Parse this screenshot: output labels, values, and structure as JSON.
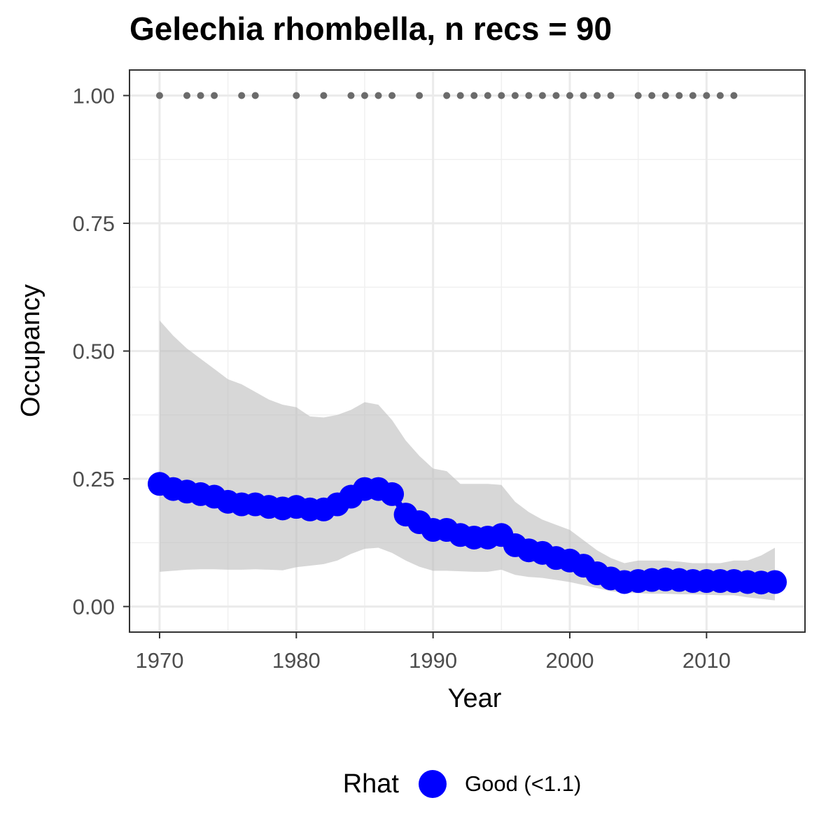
{
  "chart_data": {
    "type": "line",
    "title": "Gelechia rhombella, n recs = 90",
    "xlabel": "Year",
    "ylabel": "Occupancy",
    "xlim": [
      1967.8,
      2017.2
    ],
    "ylim": [
      -0.05,
      1.05
    ],
    "x_ticks": [
      1970,
      1980,
      1990,
      2000,
      2010
    ],
    "x_tick_labels": [
      "1970",
      "1980",
      "1990",
      "2000",
      "2010"
    ],
    "y_ticks": [
      0,
      0.25,
      0.5,
      0.75,
      1.0
    ],
    "y_tick_labels": [
      "0.00",
      "0.25",
      "0.50",
      "0.75",
      "1.00"
    ],
    "grid": true,
    "legend_position": "bottom",
    "legend_title": "Rhat",
    "series": [
      {
        "name": "Good (<1.1)",
        "color": "#0000ff",
        "x": [
          1970,
          1971,
          1972,
          1973,
          1974,
          1975,
          1976,
          1977,
          1978,
          1979,
          1980,
          1981,
          1982,
          1983,
          1984,
          1985,
          1986,
          1987,
          1988,
          1989,
          1990,
          1991,
          1992,
          1993,
          1994,
          1995,
          1996,
          1997,
          1998,
          1999,
          2000,
          2001,
          2002,
          2003,
          2004,
          2005,
          2006,
          2007,
          2008,
          2009,
          2010,
          2011,
          2012,
          2013,
          2014,
          2015
        ],
        "y": [
          0.24,
          0.23,
          0.225,
          0.22,
          0.215,
          0.205,
          0.2,
          0.2,
          0.195,
          0.192,
          0.195,
          0.19,
          0.19,
          0.2,
          0.215,
          0.23,
          0.23,
          0.22,
          0.18,
          0.165,
          0.15,
          0.15,
          0.14,
          0.135,
          0.135,
          0.14,
          0.12,
          0.11,
          0.105,
          0.095,
          0.09,
          0.08,
          0.065,
          0.055,
          0.048,
          0.05,
          0.052,
          0.053,
          0.052,
          0.05,
          0.05,
          0.05,
          0.05,
          0.048,
          0.047,
          0.048
        ],
        "lower": [
          0.068,
          0.07,
          0.072,
          0.073,
          0.073,
          0.072,
          0.072,
          0.073,
          0.072,
          0.071,
          0.077,
          0.08,
          0.083,
          0.09,
          0.103,
          0.113,
          0.115,
          0.105,
          0.09,
          0.078,
          0.07,
          0.07,
          0.069,
          0.068,
          0.068,
          0.072,
          0.062,
          0.058,
          0.056,
          0.052,
          0.048,
          0.042,
          0.036,
          0.03,
          0.027,
          0.026,
          0.025,
          0.025,
          0.024,
          0.024,
          0.023,
          0.022,
          0.022,
          0.018,
          0.015,
          0.012
        ],
        "upper": [
          0.56,
          0.53,
          0.505,
          0.485,
          0.465,
          0.445,
          0.435,
          0.42,
          0.405,
          0.395,
          0.39,
          0.372,
          0.37,
          0.375,
          0.385,
          0.4,
          0.395,
          0.365,
          0.325,
          0.295,
          0.27,
          0.265,
          0.24,
          0.24,
          0.24,
          0.238,
          0.205,
          0.185,
          0.17,
          0.16,
          0.15,
          0.13,
          0.11,
          0.095,
          0.085,
          0.09,
          0.09,
          0.09,
          0.088,
          0.085,
          0.085,
          0.085,
          0.09,
          0.09,
          0.1,
          0.115
        ]
      }
    ],
    "record_years": [
      1970,
      1972,
      1973,
      1974,
      1976,
      1977,
      1980,
      1982,
      1984,
      1985,
      1986,
      1987,
      1989,
      1991,
      1992,
      1993,
      1994,
      1995,
      1996,
      1997,
      1998,
      1999,
      2000,
      2001,
      2002,
      2003,
      2005,
      2006,
      2007,
      2008,
      2009,
      2010,
      2011,
      2012
    ],
    "record_value": 1.0,
    "record_color": "#6b6b6b",
    "ribbon_color": "#bebebe"
  }
}
